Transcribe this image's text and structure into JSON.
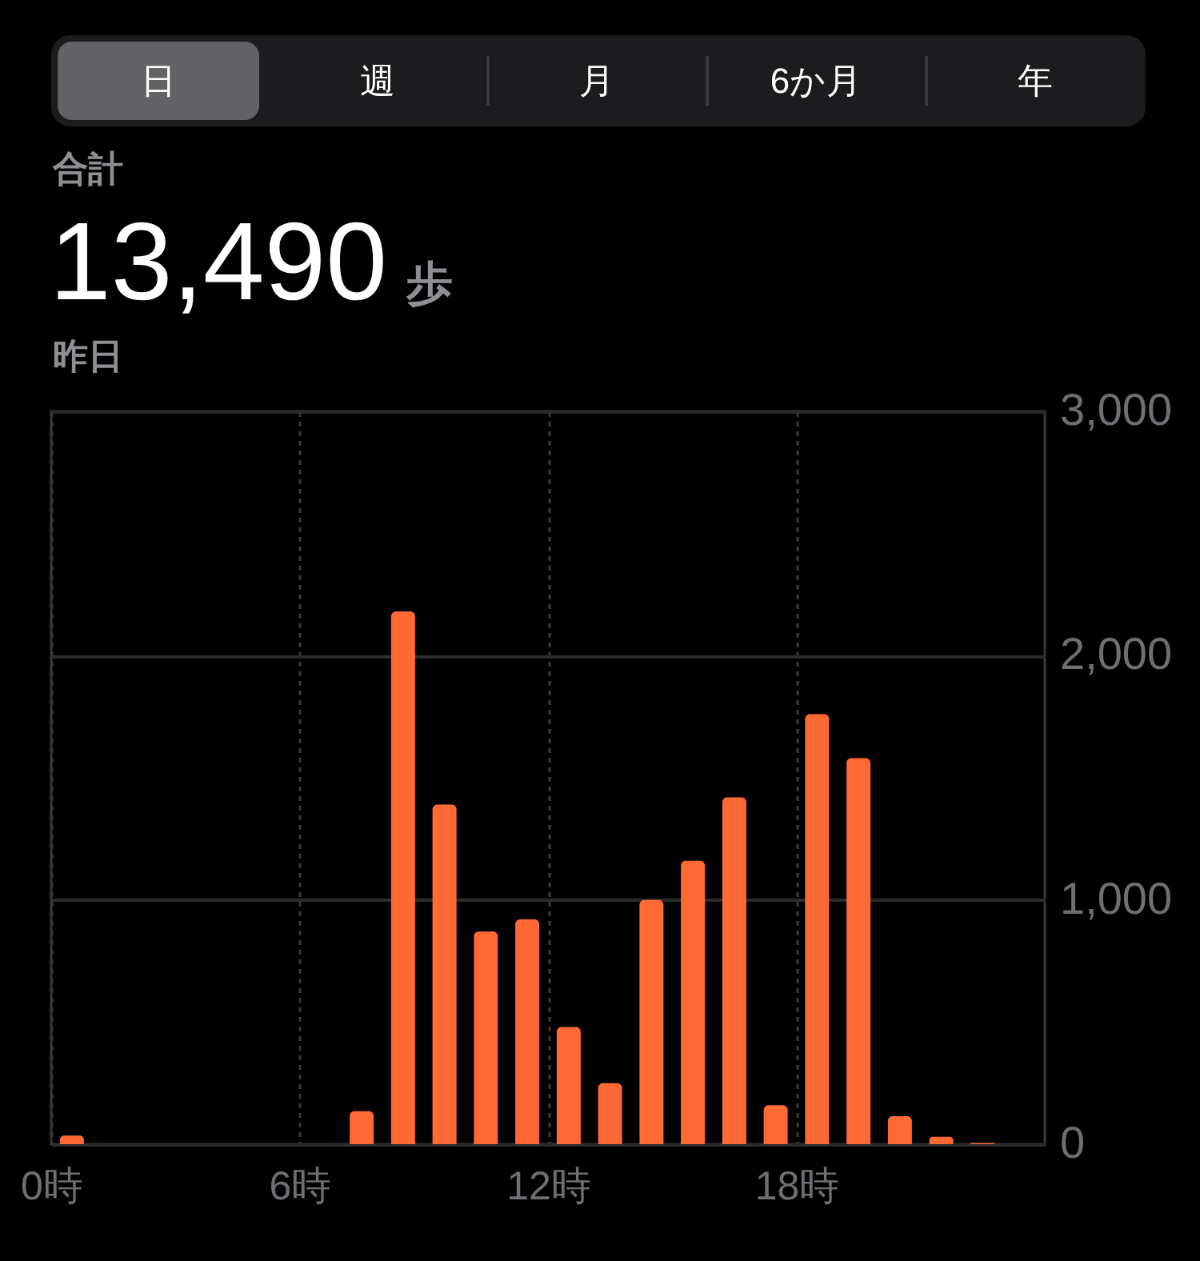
{
  "chart_data": {
    "type": "bar",
    "title": "13,490 歩",
    "subtitle": "昨日",
    "annotations": [
      "日",
      "週",
      "月",
      "6か月",
      "年",
      "合計"
    ],
    "x": [
      0.5,
      1.5,
      2.5,
      3.5,
      4.5,
      5.5,
      6.5,
      7.5,
      8.5,
      9.5,
      10.5,
      11.5,
      12.5,
      13.5,
      14.5,
      15.5,
      16.5,
      17.5,
      18.5,
      19.5,
      20.5,
      21.5,
      22.5,
      23.5
    ],
    "values": [
      35,
      0,
      0,
      0,
      0,
      0,
      0,
      135,
      2180,
      1390,
      870,
      920,
      480,
      250,
      1000,
      1160,
      1420,
      160,
      1760,
      1580,
      115,
      30,
      5,
      0
    ],
    "color": "#ff6934",
    "xlim": [
      0,
      24
    ],
    "xticks": [
      {
        "value": 0,
        "label": "0時"
      },
      {
        "value": 6,
        "label": "6時"
      },
      {
        "value": 12,
        "label": "12時"
      },
      {
        "value": 18,
        "label": "18時"
      }
    ],
    "ylim": [
      0,
      3000
    ],
    "yticks": [
      0,
      {
        "value": 1000,
        "label": "1,000"
      },
      {
        "value": 2000,
        "label": "2,000"
      },
      {
        "value": 3000,
        "label": "3,000"
      }
    ],
    "grid": true
  }
}
